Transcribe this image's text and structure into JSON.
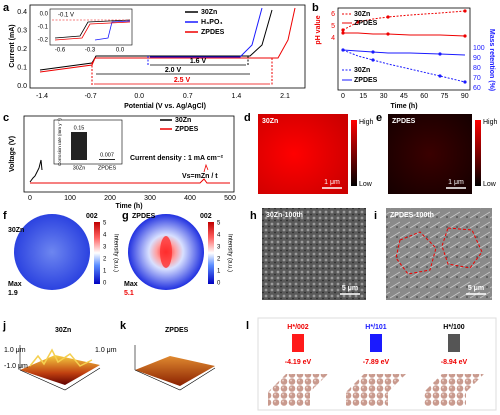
{
  "a": {
    "label": "a",
    "legend": [
      "30Zn",
      "H₃PO₄",
      "ZPDES"
    ],
    "ylabel": "Current (mA)",
    "xlabel": "Potential (V vs. Ag/AgCl)",
    "xticks": [
      "-1.4",
      "-0.7",
      "0.0",
      "0.7",
      "1.4",
      "2.1"
    ],
    "yticks": [
      "0.4",
      "0.3",
      "0.2",
      "0.1",
      "0.0"
    ],
    "windows": [
      "1.6 V",
      "2.0 V",
      "2.5 V"
    ],
    "inset": {
      "note": "-0.1 V",
      "xticks": [
        "-0.6",
        "-0.3",
        "0.0"
      ],
      "yticks": [
        "0.0",
        "-0.1",
        "-0.2"
      ]
    }
  },
  "b": {
    "label": "b",
    "legend_top": [
      "30Zn",
      "ZPDES"
    ],
    "legend_bottom": [
      "30Zn",
      "ZPDES"
    ],
    "ylabel": "pH value",
    "y2label": "Mass retention (%)",
    "xlabel": "Time (h)",
    "xticks": [
      "0",
      "15",
      "30",
      "45",
      "60",
      "75",
      "90"
    ],
    "yticks": [
      "6",
      "5",
      "4"
    ],
    "y2ticks": [
      "100",
      "90",
      "80",
      "70",
      "60"
    ]
  },
  "c": {
    "label": "c",
    "legend": [
      "30Zn",
      "ZPDES"
    ],
    "ylabel": "Voltage (V)",
    "xlabel": "Time (h)",
    "xticks": [
      "0",
      "100",
      "200",
      "300",
      "400",
      "500"
    ],
    "note": "Current density : 1 mA cm⁻²",
    "formula": "Vs=mZn / t",
    "inset": {
      "ylabel": "Corrosion rate (mm y⁻¹)",
      "categories": [
        "30Zn",
        "ZPDES"
      ],
      "value_labels": [
        "0.15",
        "0.007"
      ]
    }
  },
  "d": {
    "label": "d",
    "name": "30Zn",
    "scale": "1 μm",
    "high": "High",
    "low": "Low"
  },
  "e": {
    "label": "e",
    "name": "ZPDES",
    "scale": "1 μm",
    "high": "High",
    "low": "Low"
  },
  "f": {
    "label": "f",
    "name": "30Zn",
    "plane": "002",
    "max": "Max",
    "max_value": "1.9",
    "cbar_ticks": [
      "5",
      "4",
      "3",
      "2",
      "1",
      "0"
    ],
    "cbar_label": "Intensity (a.u.)"
  },
  "g": {
    "label": "g",
    "name": "ZPDES",
    "plane": "002",
    "max": "Max",
    "max_value": "5.1",
    "cbar_ticks": [
      "5",
      "4",
      "3",
      "2",
      "1",
      "0"
    ],
    "cbar_label": "Intensity (a.u.)"
  },
  "h": {
    "label": "h",
    "name": "30Zn-100th",
    "scale": "5 μm"
  },
  "i": {
    "label": "i",
    "name": "ZPDES-100th",
    "scale": "5 μm"
  },
  "j": {
    "label": "j",
    "name": "30Zn",
    "top_left": "1.0 μm",
    "bottom_left": "-1.0 μm",
    "right": "1.0 μm"
  },
  "k": {
    "label": "k",
    "name": "ZPDES"
  },
  "l": {
    "label": "l",
    "items": [
      {
        "label": "H*/002",
        "energy": "-4.19 eV"
      },
      {
        "label": "H*/101",
        "energy": "-7.89 eV"
      },
      {
        "label": "H*/100",
        "energy": "-8.94 eV"
      }
    ]
  }
}
